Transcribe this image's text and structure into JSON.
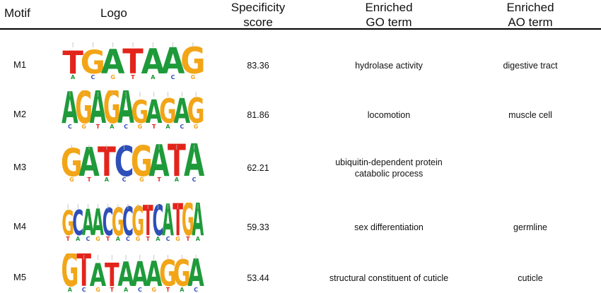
{
  "header": {
    "motif": "Motif",
    "logo": "Logo",
    "score": [
      "Specificity",
      "score"
    ],
    "go": [
      "Enriched",
      "GO term"
    ],
    "ao": [
      "Enriched",
      "AO term"
    ]
  },
  "colors": {
    "A": "#1f9a3a",
    "C": "#2e4fb8",
    "G": "#f2a516",
    "T": "#e3241b"
  },
  "rows": [
    {
      "motif": "M1",
      "score": "83.36",
      "go": [
        "hydrolase activity"
      ],
      "ao": "digestive tract",
      "logo_main": [
        "T",
        "G",
        "A",
        "T",
        "A",
        "A",
        "G"
      ]
    },
    {
      "motif": "M2",
      "score": "81.86",
      "go": [
        "locomotion"
      ],
      "ao": "muscle cell",
      "logo_main": [
        "A",
        "G",
        "A",
        "G",
        "A",
        "G",
        "A",
        "G",
        "A",
        "G"
      ]
    },
    {
      "motif": "M3",
      "score": "62.21",
      "go": [
        "ubiquitin-dependent protein",
        "catabolic process"
      ],
      "ao": "",
      "logo_main": [
        "G",
        "A",
        "T",
        "C",
        "G",
        "A",
        "T",
        "A"
      ]
    },
    {
      "motif": "M4",
      "score": "59.33",
      "go": [
        "sex differentiation"
      ],
      "ao": "germline",
      "logo_main": [
        "G",
        "C",
        "A",
        "A",
        "C",
        "G",
        "C",
        "G",
        "T",
        "C",
        "A",
        "T",
        "G",
        "A"
      ]
    },
    {
      "motif": "M5",
      "score": "53.44",
      "go": [
        "structural constituent of cuticle"
      ],
      "ao": "cuticle",
      "logo_main": [
        "G",
        "T",
        "A",
        "T",
        "A",
        "A",
        "A",
        "G",
        "G",
        "A"
      ]
    }
  ]
}
